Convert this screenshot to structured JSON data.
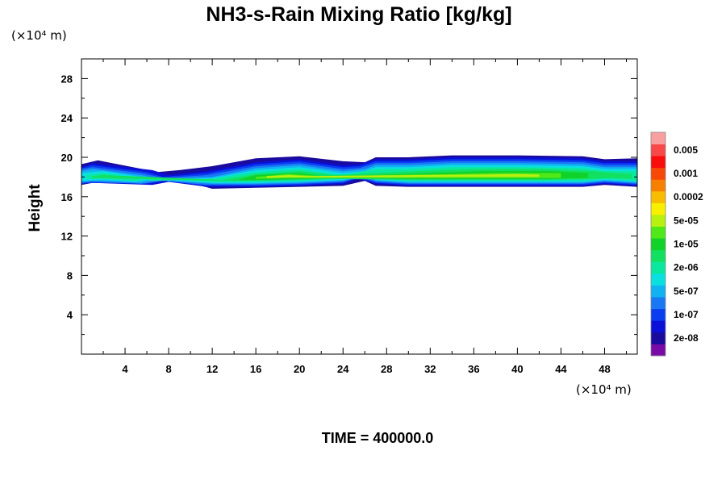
{
  "chart_data": {
    "type": "heatmap",
    "title": "NH3-s-Rain Mixing Ratio [kg/kg]",
    "xlabel": "",
    "ylabel": "Height",
    "x_unit": "(×10⁴ m)",
    "y_unit": "(×10⁴ m)",
    "xlim": [
      0,
      51
    ],
    "ylim": [
      0,
      30
    ],
    "x_ticks": [
      4,
      8,
      12,
      16,
      20,
      24,
      28,
      32,
      36,
      40,
      44,
      48
    ],
    "y_ticks": [
      4,
      8,
      12,
      16,
      20,
      24,
      28
    ],
    "x_tick_labels": [
      "4",
      "8",
      "12",
      "16",
      "20",
      "24",
      "28",
      "32",
      "36",
      "40",
      "44",
      "48"
    ],
    "y_tick_labels": [
      "4",
      "8",
      "12",
      "16",
      "20",
      "24",
      "28"
    ],
    "footer": "TIME = 400000.0",
    "colorbar": {
      "colors": [
        "#7a0aa8",
        "#1a0b9e",
        "#0a10d8",
        "#0a3cf0",
        "#1a78f5",
        "#10b2f2",
        "#0ae0e0",
        "#0ae8a0",
        "#12e060",
        "#10d228",
        "#50e818",
        "#b8f010",
        "#f8f000",
        "#f8bc00",
        "#f88000",
        "#f84808",
        "#f80c0c",
        "#f84848",
        "#f8a0a0"
      ],
      "labels": [
        "0.005",
        "0.001",
        "0.0002",
        "5e-05",
        "1e-05",
        "2e-06",
        "5e-07",
        "1e-07",
        "2e-08"
      ],
      "label_levels": [
        17,
        15,
        13,
        11,
        9,
        7,
        5,
        3,
        1
      ]
    },
    "layers": [
      {
        "level": 1,
        "name": "2e-08",
        "segments": [
          [
            0.0,
            19.3,
            17.2
          ],
          [
            1.5,
            19.7,
            17.5
          ],
          [
            7.0,
            18.5,
            17.4
          ],
          [
            9.0,
            18.7,
            17.7
          ],
          [
            12.0,
            19.1,
            16.8
          ],
          [
            16.0,
            19.9,
            16.9
          ],
          [
            20.0,
            20.1,
            17.0
          ],
          [
            24.0,
            19.6,
            17.1
          ],
          [
            26.0,
            19.5,
            17.6
          ],
          [
            27.0,
            20.0,
            17.1
          ],
          [
            30.0,
            20.0,
            17.0
          ],
          [
            34.0,
            20.2,
            17.0
          ],
          [
            40.0,
            20.2,
            17.0
          ],
          [
            46.0,
            20.1,
            17.0
          ],
          [
            48.0,
            19.8,
            17.2
          ],
          [
            51.0,
            19.9,
            17.0
          ]
        ]
      },
      {
        "level": 2,
        "name": "",
        "segments": [
          [
            0.0,
            19.0,
            17.3
          ],
          [
            1.0,
            19.4,
            17.4
          ],
          [
            6.5,
            18.7,
            17.2
          ],
          [
            8.0,
            18.2,
            17.5
          ],
          [
            11.5,
            18.6,
            17.0
          ],
          [
            16.0,
            19.5,
            17.0
          ],
          [
            20.0,
            19.8,
            17.1
          ],
          [
            24.0,
            19.2,
            17.3
          ],
          [
            25.5,
            19.3,
            17.8
          ],
          [
            27.0,
            19.8,
            17.3
          ],
          [
            30.0,
            19.8,
            17.1
          ],
          [
            34.0,
            20.0,
            17.1
          ],
          [
            40.0,
            20.0,
            17.1
          ],
          [
            46.0,
            19.9,
            17.1
          ],
          [
            48.0,
            19.6,
            17.3
          ],
          [
            51.0,
            19.6,
            17.1
          ]
        ]
      },
      {
        "level": 3,
        "name": "1e-07",
        "segments": [
          [
            0.0,
            18.9,
            17.3
          ],
          [
            1.0,
            19.2,
            17.4
          ],
          [
            6.0,
            18.5,
            17.3
          ],
          [
            7.5,
            18.0,
            17.6
          ],
          [
            11.5,
            18.4,
            17.1
          ],
          [
            16.0,
            19.3,
            17.1
          ],
          [
            20.0,
            19.6,
            17.2
          ],
          [
            24.0,
            19.0,
            17.4
          ],
          [
            25.5,
            19.1,
            17.9
          ],
          [
            27.0,
            19.6,
            17.4
          ],
          [
            30.0,
            19.6,
            17.2
          ],
          [
            34.0,
            19.8,
            17.2
          ],
          [
            40.0,
            19.8,
            17.2
          ],
          [
            46.0,
            19.7,
            17.2
          ],
          [
            48.0,
            19.4,
            17.4
          ],
          [
            51.0,
            19.4,
            17.2
          ]
        ]
      },
      {
        "level": 4,
        "name": "",
        "segments": [
          [
            0.0,
            18.8,
            17.4
          ],
          [
            1.0,
            19.0,
            17.5
          ],
          [
            5.5,
            18.4,
            17.3
          ],
          [
            7.5,
            17.9,
            17.6
          ],
          [
            11.5,
            18.2,
            17.2
          ],
          [
            16.0,
            19.1,
            17.2
          ],
          [
            20.0,
            19.4,
            17.3
          ],
          [
            24.0,
            18.8,
            17.5
          ],
          [
            25.5,
            18.9,
            18.0
          ],
          [
            27.0,
            19.4,
            17.5
          ],
          [
            30.0,
            19.4,
            17.3
          ],
          [
            34.0,
            19.6,
            17.3
          ],
          [
            40.0,
            19.6,
            17.3
          ],
          [
            46.0,
            19.5,
            17.3
          ],
          [
            48.0,
            19.2,
            17.5
          ],
          [
            51.0,
            19.2,
            17.3
          ]
        ]
      },
      {
        "level": 5,
        "name": "5e-07",
        "segments": [
          [
            0.0,
            18.6,
            17.5
          ],
          [
            1.0,
            18.8,
            17.6
          ],
          [
            5.5,
            18.2,
            17.4
          ],
          [
            7.0,
            17.8,
            17.7
          ],
          [
            12.0,
            18.0,
            17.3
          ],
          [
            16.0,
            18.9,
            17.3
          ],
          [
            20.0,
            19.2,
            17.4
          ],
          [
            24.0,
            18.6,
            17.6
          ],
          [
            26.0,
            18.8,
            18.1
          ],
          [
            27.0,
            19.2,
            17.6
          ],
          [
            30.0,
            19.2,
            17.4
          ],
          [
            34.0,
            19.4,
            17.4
          ],
          [
            40.0,
            19.4,
            17.4
          ],
          [
            46.0,
            19.3,
            17.4
          ],
          [
            48.0,
            19.0,
            17.6
          ],
          [
            51.0,
            19.0,
            17.4
          ]
        ]
      },
      {
        "level": 6,
        "name": "",
        "segments": [
          [
            0.0,
            18.4,
            17.6
          ],
          [
            2.0,
            18.6,
            17.7
          ],
          [
            5.0,
            18.1,
            17.5
          ],
          [
            6.5,
            17.7,
            17.8
          ],
          [
            12.0,
            17.9,
            17.4
          ],
          [
            16.0,
            18.7,
            17.4
          ],
          [
            20.0,
            19.0,
            17.5
          ],
          [
            24.0,
            18.4,
            17.7
          ],
          [
            26.0,
            18.6,
            18.2
          ],
          [
            27.0,
            19.0,
            17.7
          ],
          [
            30.0,
            19.0,
            17.5
          ],
          [
            34.0,
            19.2,
            17.5
          ],
          [
            40.0,
            19.2,
            17.5
          ],
          [
            46.0,
            19.1,
            17.5
          ],
          [
            48.0,
            18.8,
            17.7
          ],
          [
            51.0,
            18.8,
            17.5
          ]
        ]
      },
      {
        "level": 7,
        "name": "2e-06",
        "segments": [
          [
            0.5,
            18.2,
            17.8
          ],
          [
            2.0,
            18.4,
            17.8
          ],
          [
            5.0,
            17.9,
            17.6
          ],
          [
            6.5,
            17.6,
            17.9
          ],
          [
            12.0,
            17.8,
            17.5
          ],
          [
            16.0,
            18.5,
            17.5
          ],
          [
            20.0,
            18.8,
            17.6
          ],
          [
            24.0,
            18.2,
            17.8
          ],
          [
            27.0,
            18.8,
            17.8
          ],
          [
            30.0,
            18.8,
            17.6
          ],
          [
            34.0,
            19.0,
            17.6
          ],
          [
            40.0,
            19.0,
            17.6
          ],
          [
            46.0,
            18.9,
            17.6
          ],
          [
            48.0,
            18.6,
            17.8
          ],
          [
            51.0,
            18.6,
            17.6
          ]
        ]
      },
      {
        "level": 8,
        "name": "",
        "segments": [
          [
            1.0,
            18.1,
            17.9
          ],
          [
            2.0,
            18.2,
            17.9
          ],
          [
            13.0,
            17.7,
            17.6
          ],
          [
            16.0,
            18.3,
            17.6
          ],
          [
            20.0,
            18.6,
            17.7
          ],
          [
            23.0,
            18.2,
            17.8
          ],
          [
            31.0,
            18.6,
            17.7
          ],
          [
            36.0,
            18.8,
            17.7
          ],
          [
            42.0,
            18.8,
            17.7
          ],
          [
            47.0,
            18.6,
            17.8
          ],
          [
            49.0,
            18.4,
            17.9
          ],
          [
            50.5,
            18.3,
            17.8
          ]
        ]
      },
      {
        "level": 9,
        "name": "1e-05",
        "segments": [
          [
            14.0,
            17.6,
            17.7
          ],
          [
            16.0,
            18.2,
            17.7
          ],
          [
            20.0,
            18.4,
            17.8
          ],
          [
            22.5,
            18.0,
            17.9
          ],
          [
            32.0,
            18.4,
            17.8
          ],
          [
            37.0,
            18.6,
            17.8
          ],
          [
            43.0,
            18.6,
            17.8
          ],
          [
            46.5,
            18.4,
            17.9
          ]
        ]
      },
      {
        "level": 10,
        "name": "",
        "segments": [
          [
            16.0,
            18.0,
            17.8
          ],
          [
            19.0,
            18.3,
            17.9
          ],
          [
            22.0,
            18.1,
            17.9
          ],
          [
            34.0,
            18.3,
            17.9
          ],
          [
            38.0,
            18.4,
            17.9
          ],
          [
            44.0,
            18.4,
            17.9
          ]
        ]
      },
      {
        "level": 11,
        "name": "5e-05",
        "segments": [
          [
            17.0,
            18.1,
            17.9
          ],
          [
            19.0,
            18.2,
            17.95
          ],
          [
            21.0,
            18.1,
            17.95
          ],
          [
            37.0,
            18.25,
            18.0
          ],
          [
            40.0,
            18.3,
            18.0
          ],
          [
            42.0,
            18.25,
            18.0
          ]
        ]
      }
    ]
  }
}
